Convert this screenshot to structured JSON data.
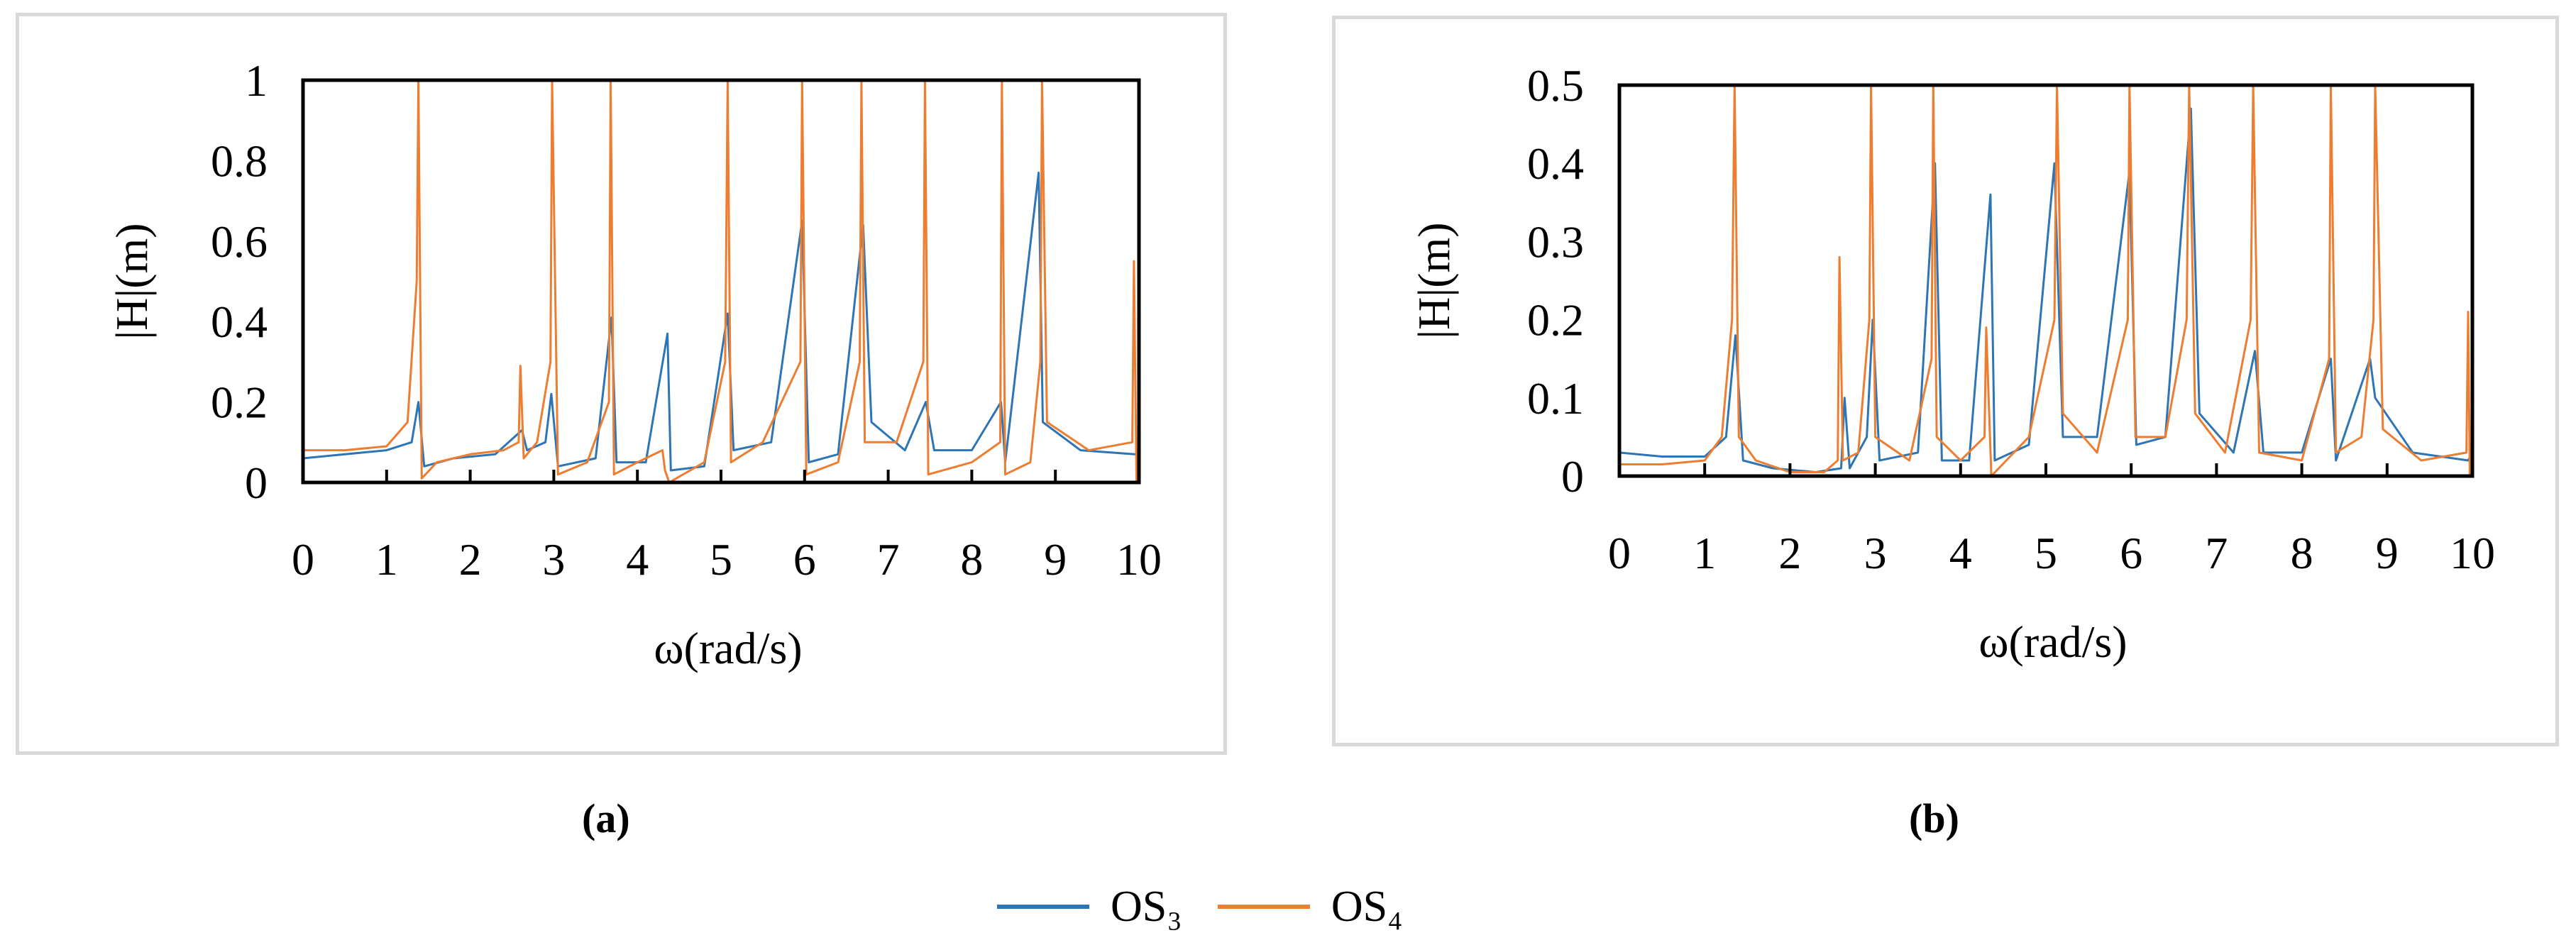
{
  "colors": {
    "os3": "#2e75b6",
    "os4": "#ed7d31",
    "frame": "#000000",
    "border": "#d9d9d9"
  },
  "legend": {
    "os3": "OS₃",
    "os4": "OS₄"
  },
  "chart_data": [
    {
      "type": "line",
      "panel_label": "(a)",
      "xlabel": "ω(rad/s)",
      "ylabel": "|H|(m)",
      "xlim": [
        0,
        10
      ],
      "ylim": [
        0,
        1
      ],
      "xticks": [
        "0",
        "1",
        "2",
        "3",
        "4",
        "5",
        "6",
        "7",
        "8",
        "9",
        "10"
      ],
      "yticks": [
        "0",
        "0.2",
        "0.4",
        "0.6",
        "0.8",
        "1"
      ],
      "grid": false,
      "series": [
        {
          "name": "OS₃",
          "color_key": "os3",
          "x": [
            0,
            0.5,
            1.0,
            1.3,
            1.38,
            1.45,
            1.8,
            2.3,
            2.62,
            2.68,
            2.9,
            2.97,
            3.05,
            3.5,
            3.69,
            3.75,
            4.1,
            4.36,
            4.4,
            4.8,
            5.08,
            5.15,
            5.6,
            5.97,
            6.05,
            6.4,
            6.7,
            6.8,
            7.2,
            7.45,
            7.55,
            8.0,
            8.35,
            8.4,
            8.8,
            8.85,
            9.3,
            9.95,
            10
          ],
          "y": [
            0.06,
            0.07,
            0.08,
            0.1,
            0.2,
            0.04,
            0.06,
            0.07,
            0.13,
            0.08,
            0.1,
            0.22,
            0.04,
            0.06,
            0.41,
            0.05,
            0.05,
            0.37,
            0.03,
            0.04,
            0.42,
            0.08,
            0.1,
            0.65,
            0.05,
            0.07,
            0.64,
            0.15,
            0.08,
            0.2,
            0.08,
            0.08,
            0.2,
            0.05,
            0.77,
            0.15,
            0.08,
            0.07,
            0.07
          ]
        },
        {
          "name": "OS₄",
          "color_key": "os4",
          "x": [
            0,
            0.5,
            1.0,
            1.25,
            1.36,
            1.38,
            1.42,
            1.6,
            2.0,
            2.4,
            2.58,
            2.6,
            2.64,
            2.8,
            2.96,
            2.98,
            3.05,
            3.4,
            3.66,
            3.68,
            3.72,
            4.0,
            4.3,
            4.33,
            4.38,
            4.8,
            5.05,
            5.08,
            5.12,
            5.5,
            5.95,
            5.97,
            6.02,
            6.4,
            6.66,
            6.68,
            6.72,
            7.1,
            7.42,
            7.44,
            7.48,
            8.0,
            8.34,
            8.36,
            8.4,
            8.7,
            8.82,
            8.84,
            8.9,
            9.4,
            9.92,
            9.94,
            9.97,
            10
          ],
          "y": [
            0.08,
            0.08,
            0.09,
            0.15,
            0.5,
            1.0,
            0.01,
            0.05,
            0.07,
            0.08,
            0.1,
            0.29,
            0.06,
            0.1,
            0.3,
            1.0,
            0.02,
            0.05,
            0.2,
            1.0,
            0.02,
            0.05,
            0.08,
            0.03,
            0.0,
            0.05,
            0.3,
            1.0,
            0.05,
            0.1,
            0.3,
            1.0,
            0.02,
            0.05,
            0.3,
            1.0,
            0.1,
            0.1,
            0.3,
            1.0,
            0.02,
            0.05,
            0.1,
            1.0,
            0.02,
            0.05,
            0.3,
            1.0,
            0.15,
            0.08,
            0.1,
            0.55,
            0.0,
            0.06
          ]
        }
      ]
    },
    {
      "type": "line",
      "panel_label": "(b)",
      "xlabel": "ω(rad/s)",
      "ylabel": "|H|(m)",
      "xlim": [
        0,
        10
      ],
      "ylim": [
        0,
        0.5
      ],
      "xticks": [
        "0",
        "1",
        "2",
        "3",
        "4",
        "5",
        "6",
        "7",
        "8",
        "9",
        "10"
      ],
      "yticks": [
        "0",
        "0.1",
        "0.2",
        "0.3",
        "0.4",
        "0.5"
      ],
      "grid": false,
      "series": [
        {
          "name": "OS₃",
          "color_key": "os3",
          "x": [
            0,
            0.5,
            1.0,
            1.25,
            1.36,
            1.45,
            1.8,
            2.3,
            2.6,
            2.64,
            2.7,
            2.9,
            2.97,
            3.05,
            3.5,
            3.7,
            3.78,
            4.1,
            4.35,
            4.4,
            4.8,
            5.1,
            5.2,
            5.6,
            5.98,
            6.06,
            6.4,
            6.7,
            6.8,
            7.2,
            7.45,
            7.55,
            8.0,
            8.34,
            8.4,
            8.8,
            8.86,
            9.3,
            9.95,
            10
          ],
          "y": [
            0.03,
            0.025,
            0.025,
            0.05,
            0.18,
            0.02,
            0.01,
            0.005,
            0.01,
            0.1,
            0.01,
            0.05,
            0.2,
            0.02,
            0.03,
            0.4,
            0.02,
            0.02,
            0.36,
            0.02,
            0.04,
            0.4,
            0.05,
            0.05,
            0.39,
            0.04,
            0.05,
            0.47,
            0.08,
            0.03,
            0.16,
            0.03,
            0.03,
            0.15,
            0.02,
            0.15,
            0.1,
            0.03,
            0.02,
            0.03
          ]
        },
        {
          "name": "OS₄",
          "color_key": "os4",
          "x": [
            0,
            0.5,
            1.0,
            1.2,
            1.32,
            1.35,
            1.4,
            1.6,
            2.0,
            2.4,
            2.56,
            2.58,
            2.62,
            2.8,
            2.93,
            2.95,
            3.0,
            3.4,
            3.66,
            3.68,
            3.72,
            4.0,
            4.28,
            4.3,
            4.36,
            4.8,
            5.1,
            5.13,
            5.2,
            5.6,
            5.96,
            5.98,
            6.05,
            6.4,
            6.65,
            6.68,
            6.75,
            7.1,
            7.4,
            7.43,
            7.5,
            8.0,
            8.32,
            8.34,
            8.4,
            8.7,
            8.84,
            8.86,
            8.95,
            9.4,
            9.93,
            9.95,
            9.97,
            10
          ],
          "y": [
            0.015,
            0.015,
            0.02,
            0.05,
            0.2,
            0.5,
            0.05,
            0.02,
            0.005,
            0.005,
            0.02,
            0.28,
            0.02,
            0.03,
            0.2,
            0.5,
            0.05,
            0.02,
            0.15,
            0.5,
            0.05,
            0.02,
            0.05,
            0.19,
            0.0,
            0.05,
            0.2,
            0.5,
            0.08,
            0.03,
            0.2,
            0.5,
            0.05,
            0.05,
            0.2,
            0.5,
            0.08,
            0.03,
            0.2,
            0.5,
            0.03,
            0.02,
            0.15,
            0.5,
            0.03,
            0.05,
            0.2,
            0.5,
            0.06,
            0.02,
            0.03,
            0.21,
            0.0,
            0.02
          ]
        }
      ]
    }
  ]
}
